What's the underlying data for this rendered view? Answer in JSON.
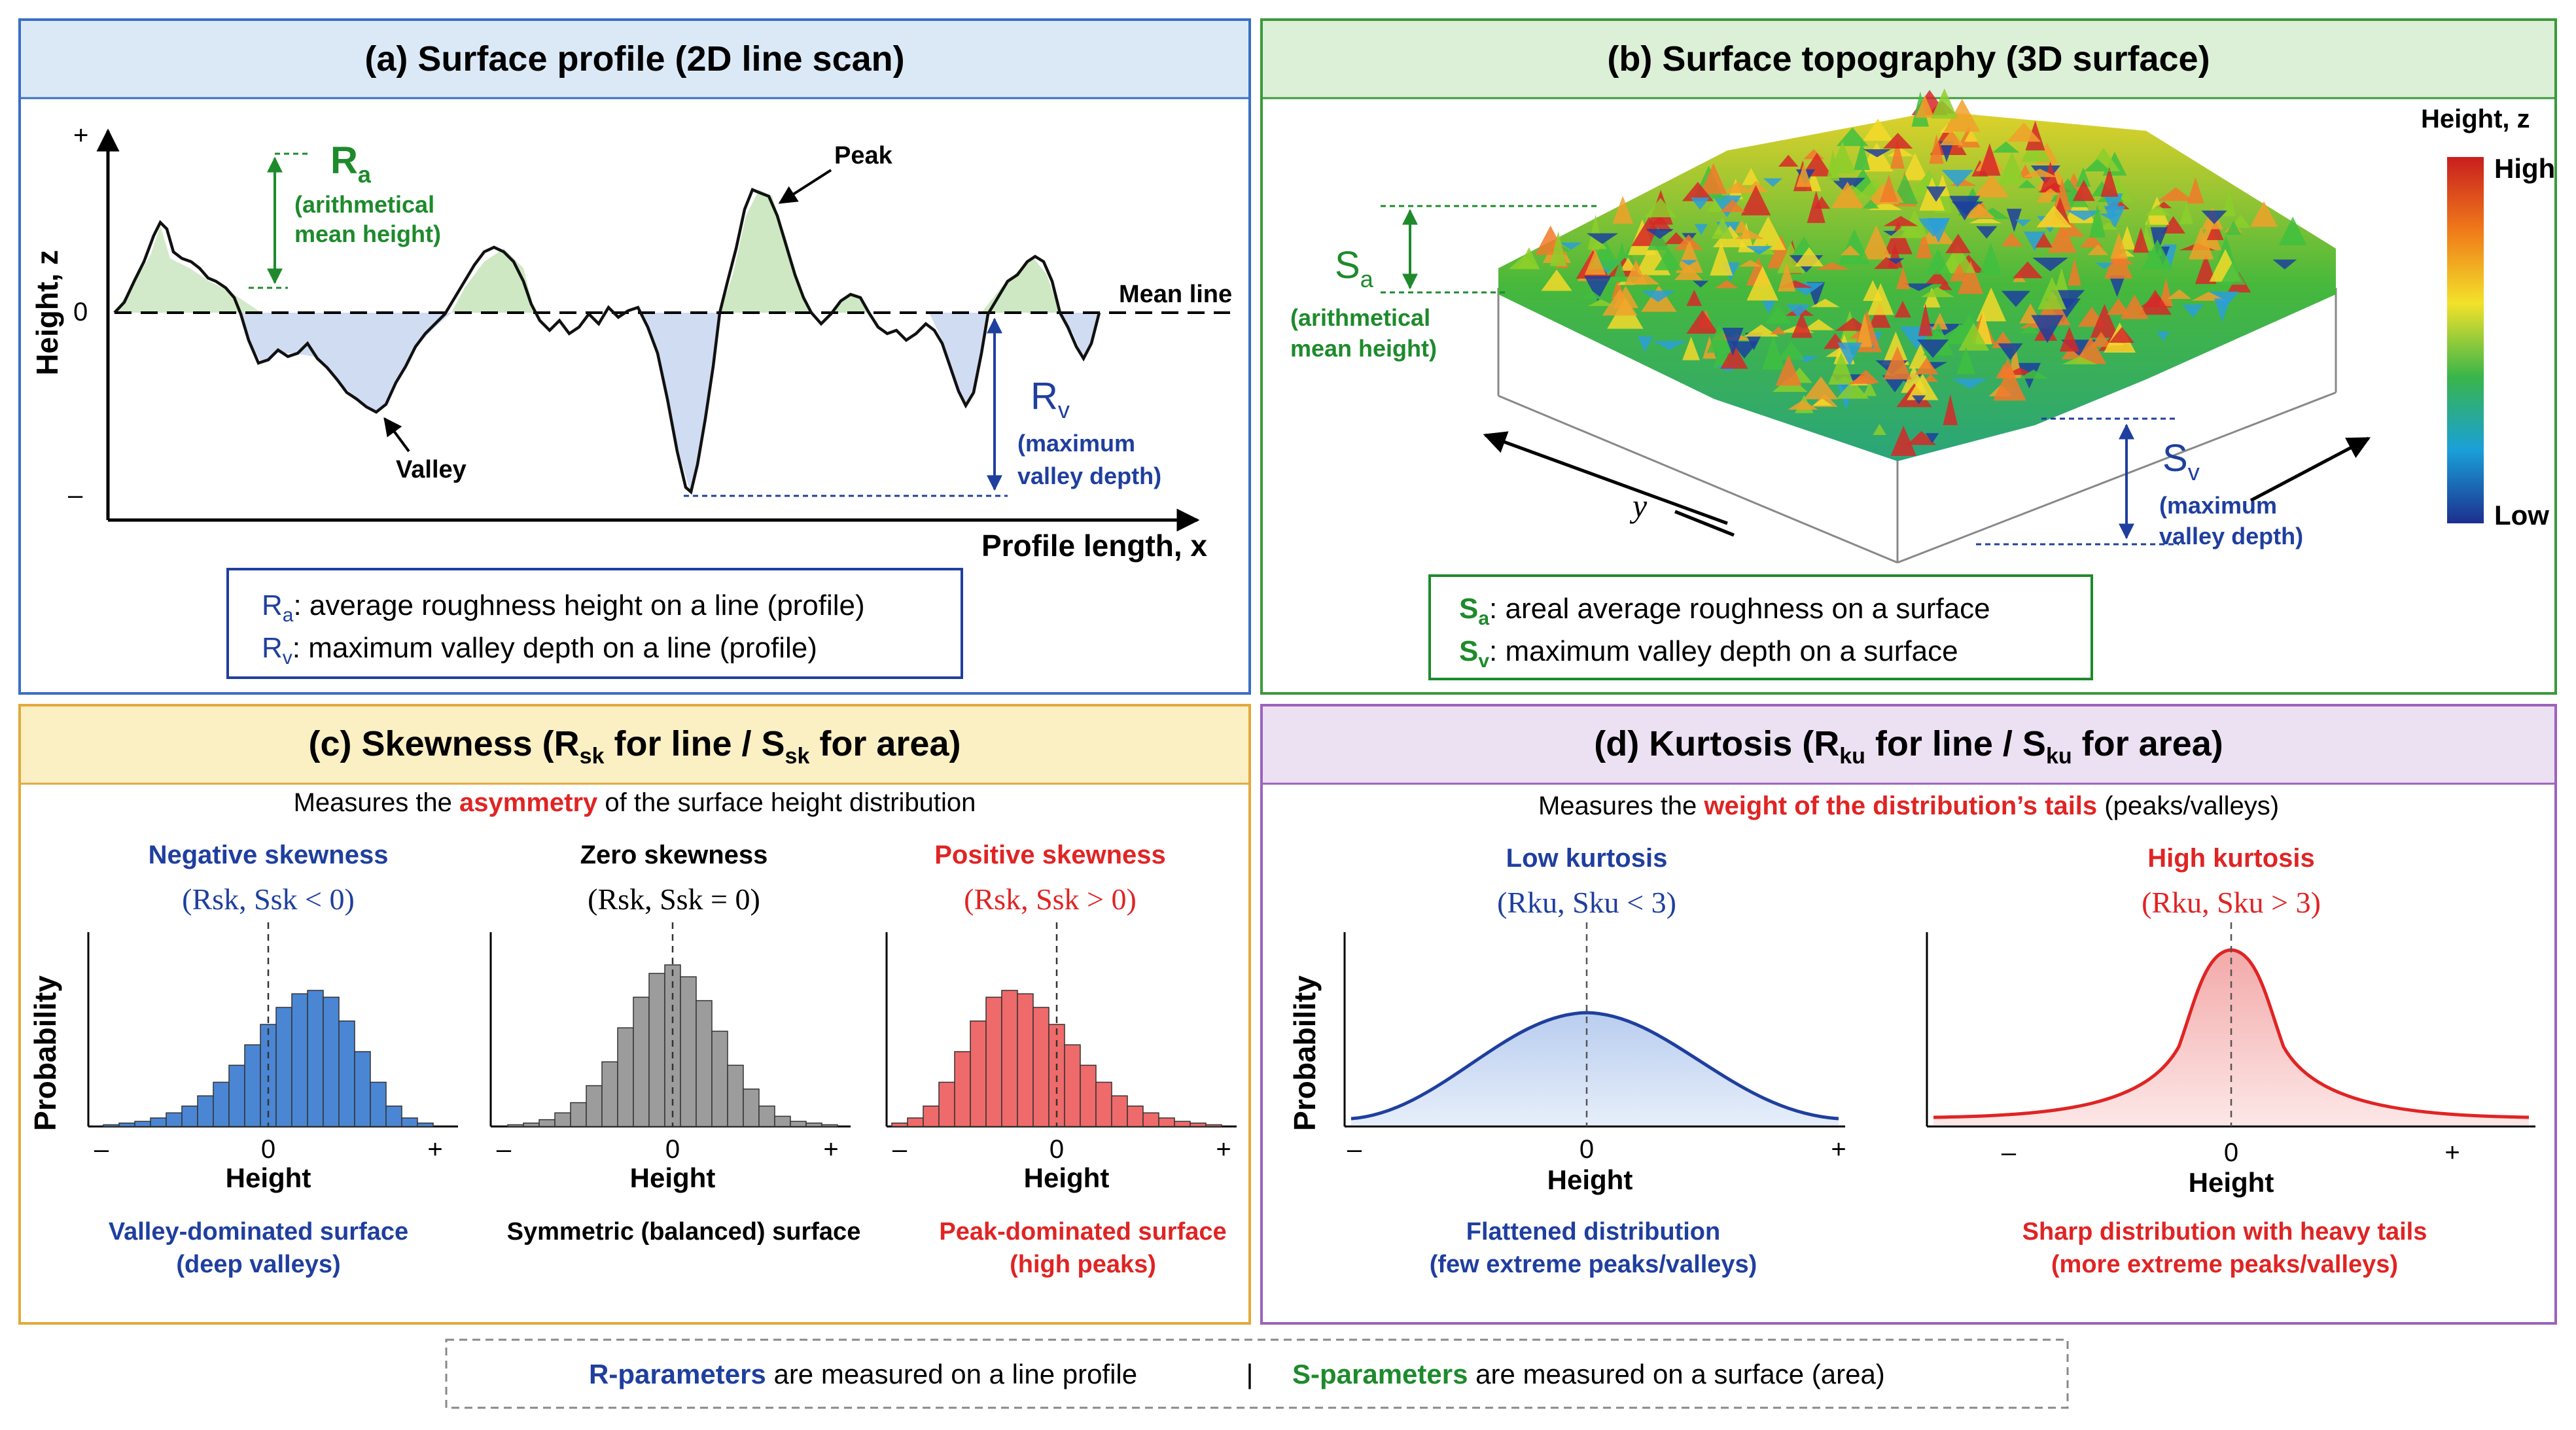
{
  "panels": {
    "a": {
      "title": "(a) Surface profile (2D line scan)",
      "y_axis_label": "Height, z",
      "y_plus": "+",
      "y_zero": "0",
      "y_minus": "–",
      "x_axis_label": "Profile length, x",
      "peak_label": "Peak",
      "valley_label": "Valley",
      "mean_line_label": "Mean line",
      "ra_symbol": "R",
      "ra_sub": "a",
      "ra_desc_1": "(arithmetical",
      "ra_desc_2": "mean height)",
      "rv_symbol": "R",
      "rv_sub": "v",
      "rv_desc_1": "(maximum",
      "rv_desc_2": "valley depth)",
      "legend_1_sym": "R",
      "legend_1_sub": "a",
      "legend_1_text": ": average roughness height on a line (profile)",
      "legend_2_sym": "R",
      "legend_2_sub": "v",
      "legend_2_text": ": maximum valley depth on a line (profile)"
    },
    "b": {
      "title": "(b) Surface topography (3D surface)",
      "colorbar_title": "Height, z",
      "colorbar_high": "High",
      "colorbar_low": "Low",
      "sa_symbol": "S",
      "sa_sub": "a",
      "sa_desc_1": "(arithmetical",
      "sa_desc_2": "mean height)",
      "sv_symbol": "S",
      "sv_sub": "v",
      "sv_desc_1": "(maximum",
      "sv_desc_2": "valley depth)",
      "y_label": "y",
      "legend_1_sym": "S",
      "legend_1_sub": "a",
      "legend_1_text": ": areal average roughness on a surface",
      "legend_2_sym": "S",
      "legend_2_sub": "v",
      "legend_2_text": ": maximum valley depth on a surface"
    },
    "c": {
      "title_pre": "(c) Skewness (R",
      "title_sub1": "sk",
      "title_mid": " for line / S",
      "title_sub2": "sk",
      "title_post": " for area)",
      "intro_pre": "Measures the ",
      "intro_em": "asymmetry",
      "intro_post": " of the surface height distribution",
      "y_label": "Probability",
      "negative": {
        "title": "Negative skewness",
        "formula": "(Rsk, Ssk < 0)",
        "x_label": "Height",
        "minus": "–",
        "zero": "0",
        "plus": "+",
        "desc_1": "Valley-dominated surface",
        "desc_2": "(deep valleys)"
      },
      "zero": {
        "title": "Zero skewness",
        "formula": "(Rsk, Ssk = 0)",
        "x_label": "Height",
        "minus": "–",
        "zero": "0",
        "plus": "+",
        "desc_1": "Symmetric (balanced) surface"
      },
      "positive": {
        "title": "Positive skewness",
        "formula": "(Rsk, Ssk > 0)",
        "x_label": "Height",
        "minus": "–",
        "zero": "0",
        "plus": "+",
        "desc_1": "Peak-dominated surface",
        "desc_2": "(high peaks)"
      }
    },
    "d": {
      "title_pre": "(d) Kurtosis (R",
      "title_sub1": "ku",
      "title_mid": " for line / S",
      "title_sub2": "ku",
      "title_post": " for area)",
      "intro_pre": "Measures the ",
      "intro_em": "weight of the distribution’s tails",
      "intro_post": " (peaks/valleys)",
      "y_label": "Probability",
      "low": {
        "title": "Low kurtosis",
        "formula": "(Rku, Sku < 3)",
        "x_label": "Height",
        "minus": "–",
        "zero": "0",
        "plus": "+",
        "desc_1": "Flattened distribution",
        "desc_2": "(few extreme peaks/valleys)"
      },
      "high": {
        "title": "High kurtosis",
        "formula": "(Rku, Sku > 3)",
        "x_label": "Height",
        "minus": "–",
        "zero": "0",
        "plus": "+",
        "desc_1": "Sharp distribution with heavy tails",
        "desc_2": "(more extreme peaks/valleys)"
      }
    }
  },
  "footer": {
    "r_em": "R-parameters",
    "r_text": " are measured on a line profile",
    "sep": "|",
    "s_em": "S-parameters",
    "s_text": " are measured on a surface (area)"
  },
  "colors": {
    "blue": "#1f3f9e",
    "green": "#1e8a2c",
    "red": "#e02424",
    "panel_a_bg": "#dbe9f7",
    "panel_b_bg": "#dcefd7",
    "panel_c_bg": "#fbefc4",
    "panel_d_bg": "#ece0f3",
    "hist_blue": "#4a86d4",
    "hist_gray": "#9c9c9c",
    "hist_red": "#ef6a6a"
  },
  "chart_data": [
    {
      "type": "bar",
      "name": "negative-skewness",
      "values": [
        1,
        2,
        3,
        5,
        8,
        12,
        18,
        26,
        36,
        48,
        60,
        70,
        78,
        80,
        76,
        62,
        44,
        26,
        12,
        5,
        2
      ]
    },
    {
      "type": "bar",
      "name": "zero-skewness",
      "values": [
        1,
        2,
        4,
        8,
        14,
        24,
        38,
        58,
        76,
        90,
        95,
        88,
        74,
        56,
        36,
        22,
        12,
        6,
        3,
        2,
        1
      ]
    },
    {
      "type": "bar",
      "name": "positive-skewness",
      "values": [
        2,
        5,
        12,
        26,
        44,
        62,
        76,
        80,
        78,
        70,
        60,
        48,
        36,
        26,
        18,
        12,
        8,
        5,
        3,
        2,
        1
      ]
    }
  ]
}
